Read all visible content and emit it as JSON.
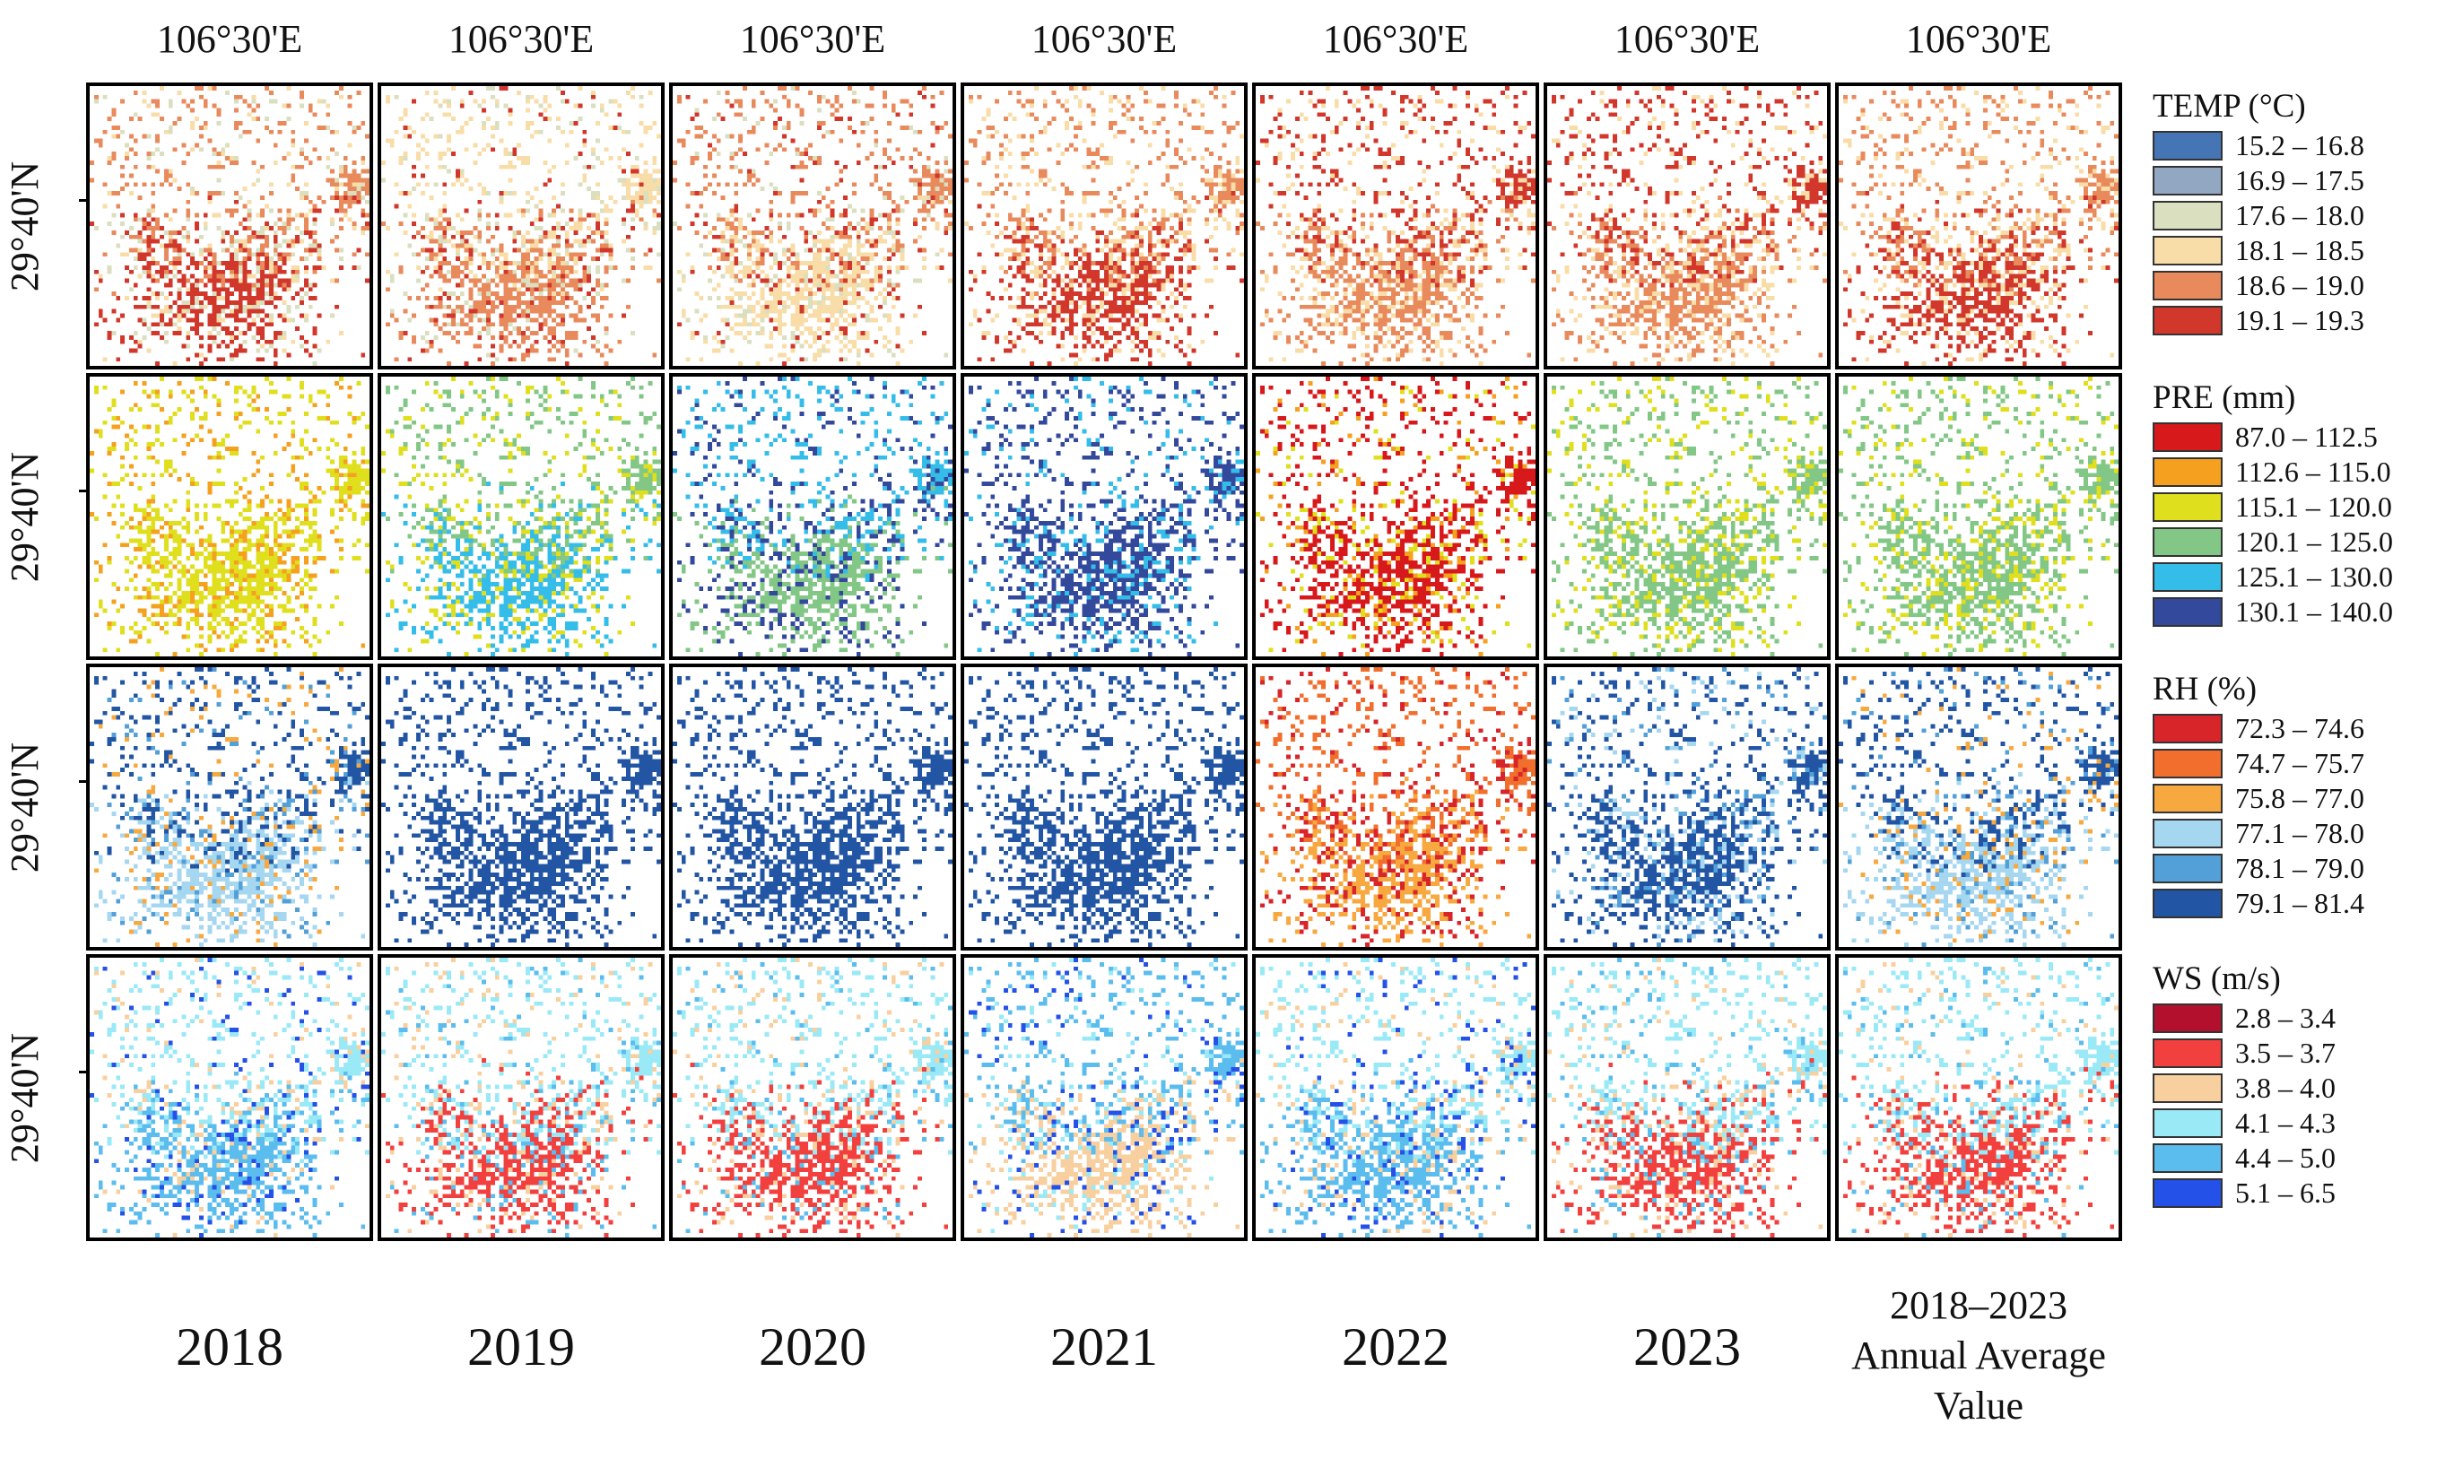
{
  "longitude_label": "106°30'E",
  "latitude_label": "29°40'N",
  "columns": [
    "2018",
    "2019",
    "2020",
    "2021",
    "2022",
    "2023",
    "2018–2023 Annual Average Value"
  ],
  "average_label_lines": [
    "2018–2023",
    "Annual Average",
    "Value"
  ],
  "variables": [
    {
      "id": "temp",
      "title": "TEMP (°C)",
      "classes": [
        {
          "label": "15.2 – 16.8",
          "color": "#4575b4"
        },
        {
          "label": "16.9 – 17.5",
          "color": "#91a7c2"
        },
        {
          "label": "17.6 – 18.0",
          "color": "#d9dfbf"
        },
        {
          "label": "18.1 – 18.5",
          "color": "#f8dda8"
        },
        {
          "label": "18.6 – 19.0",
          "color": "#e98a5c"
        },
        {
          "label": "19.1 – 19.3",
          "color": "#d1382b"
        }
      ],
      "panels": [
        {
          "year": "2018",
          "dominant": [
            4,
            5
          ],
          "mix": [
            3,
            2
          ]
        },
        {
          "year": "2019",
          "dominant": [
            3,
            4
          ],
          "mix": [
            2,
            5
          ]
        },
        {
          "year": "2020",
          "dominant": [
            4,
            3
          ],
          "mix": [
            5,
            2
          ]
        },
        {
          "year": "2021",
          "dominant": [
            4,
            5
          ],
          "mix": [
            3
          ]
        },
        {
          "year": "2022",
          "dominant": [
            5,
            4
          ],
          "mix": [
            3
          ]
        },
        {
          "year": "2023",
          "dominant": [
            5,
            4
          ],
          "mix": [
            3
          ]
        },
        {
          "year": "Average",
          "dominant": [
            4,
            5
          ],
          "mix": [
            3
          ]
        }
      ]
    },
    {
      "id": "pre",
      "title": "PRE (mm)",
      "classes": [
        {
          "label": "87.0 – 112.5",
          "color": "#d7191c"
        },
        {
          "label": "112.6 – 115.0",
          "color": "#f5a01e"
        },
        {
          "label": "115.1 – 120.0",
          "color": "#dfdf1e"
        },
        {
          "label": "120.1 – 125.0",
          "color": "#82c785"
        },
        {
          "label": "125.1 – 130.0",
          "color": "#35bdea"
        },
        {
          "label": "130.1 – 140.0",
          "color": "#33499c"
        }
      ],
      "panels": [
        {
          "year": "2018",
          "dominant": [
            2
          ],
          "mix": [
            1
          ]
        },
        {
          "year": "2019",
          "dominant": [
            3,
            4
          ],
          "mix": [
            2
          ]
        },
        {
          "year": "2020",
          "dominant": [
            4,
            3
          ],
          "mix": [
            5
          ]
        },
        {
          "year": "2021",
          "dominant": [
            5
          ],
          "mix": [
            4
          ]
        },
        {
          "year": "2022",
          "dominant": [
            0
          ],
          "mix": [
            1,
            2
          ]
        },
        {
          "year": "2023",
          "dominant": [
            3
          ],
          "mix": [
            2
          ]
        },
        {
          "year": "Average",
          "dominant": [
            3
          ],
          "mix": [
            2
          ]
        }
      ]
    },
    {
      "id": "rh",
      "title": "RH (%)",
      "classes": [
        {
          "label": "72.3 – 74.6",
          "color": "#d7252a"
        },
        {
          "label": "74.7 – 75.7",
          "color": "#f16e2c"
        },
        {
          "label": "75.8 – 77.0",
          "color": "#f7a940"
        },
        {
          "label": "77.1 – 78.0",
          "color": "#a6d7f0"
        },
        {
          "label": "78.1 – 79.0",
          "color": "#52a0d7"
        },
        {
          "label": "79.1 – 81.4",
          "color": "#2256a4"
        }
      ],
      "panels": [
        {
          "year": "2018",
          "dominant": [
            5,
            3
          ],
          "mix": [
            2,
            4
          ]
        },
        {
          "year": "2019",
          "dominant": [
            5
          ],
          "mix": []
        },
        {
          "year": "2020",
          "dominant": [
            5
          ],
          "mix": []
        },
        {
          "year": "2021",
          "dominant": [
            5
          ],
          "mix": []
        },
        {
          "year": "2022",
          "dominant": [
            1,
            2
          ],
          "mix": [
            0
          ]
        },
        {
          "year": "2023",
          "dominant": [
            5
          ],
          "mix": [
            3,
            4
          ]
        },
        {
          "year": "Average",
          "dominant": [
            5,
            3
          ],
          "mix": [
            4,
            2
          ]
        }
      ]
    },
    {
      "id": "ws",
      "title": "WS (m/s)",
      "classes": [
        {
          "label": "2.8 – 3.4",
          "color": "#b2102c"
        },
        {
          "label": "3.5 – 3.7",
          "color": "#f2403e"
        },
        {
          "label": "3.8 – 4.0",
          "color": "#f8d0a0"
        },
        {
          "label": "4.1 – 4.3",
          "color": "#99e9f6"
        },
        {
          "label": "4.4 – 5.0",
          "color": "#5bbcee"
        },
        {
          "label": "5.1 – 6.5",
          "color": "#2451e8"
        }
      ],
      "panels": [
        {
          "year": "2018",
          "dominant": [
            3,
            4
          ],
          "mix": [
            2,
            5
          ]
        },
        {
          "year": "2019",
          "dominant": [
            3,
            1
          ],
          "mix": [
            4,
            2
          ]
        },
        {
          "year": "2020",
          "dominant": [
            3,
            1
          ],
          "mix": [
            4,
            2
          ]
        },
        {
          "year": "2021",
          "dominant": [
            4,
            2
          ],
          "mix": [
            5,
            3
          ]
        },
        {
          "year": "2022",
          "dominant": [
            3,
            4
          ],
          "mix": [
            5,
            2
          ]
        },
        {
          "year": "2023",
          "dominant": [
            3,
            1
          ],
          "mix": [
            4,
            2
          ]
        },
        {
          "year": "Average",
          "dominant": [
            3,
            1
          ],
          "mix": [
            4,
            2
          ]
        }
      ]
    }
  ]
}
